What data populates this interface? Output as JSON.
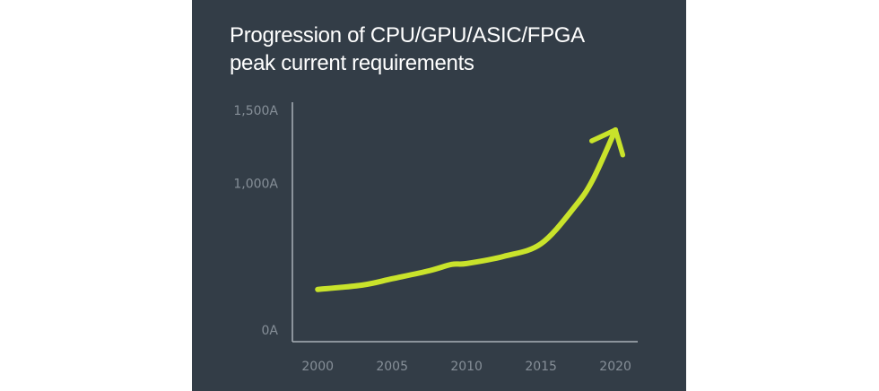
{
  "chart_data": {
    "type": "line",
    "title": "Progression of CPU/GPU/ASIC/FPGA peak current requirements",
    "x": [
      2000,
      2003,
      2005,
      2007.5,
      2009,
      2010,
      2012.5,
      2015,
      2017.3,
      2018.5,
      2020
    ],
    "values": [
      282,
      312,
      355,
      410,
      453,
      459,
      508,
      594,
      851,
      1035,
      1372
    ],
    "color": "#c9e32b",
    "xlim": [
      1998.3,
      2021.5
    ],
    "xticks": [
      2000,
      2005,
      2010,
      2015,
      2020
    ],
    "ylim": [
      -75,
      1500
    ],
    "yticks": [
      {
        "value": 0,
        "label": "0A"
      },
      {
        "value": 1000,
        "label": "1,000A"
      },
      {
        "value": 1500,
        "label": "1,500A"
      }
    ]
  }
}
